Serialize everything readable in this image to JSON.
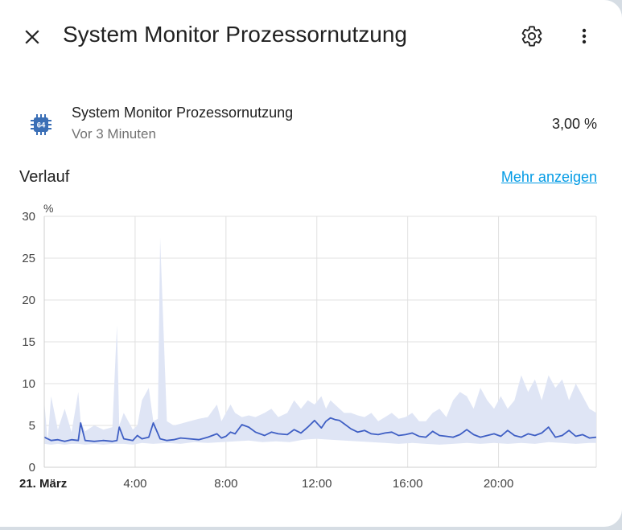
{
  "dialog": {
    "title": "System Monitor Prozessornutzung",
    "icons": {
      "close": "close-icon",
      "settings": "gear-icon",
      "more": "dots-vertical-icon"
    }
  },
  "entity": {
    "icon": "cpu-64-bit-icon",
    "icon_text": "64",
    "name": "System Monitor Prozessornutzung",
    "last_changed": "Vor 3 Minuten",
    "state": "3,00 %"
  },
  "history": {
    "title": "Verlauf",
    "more_link": "Mehr anzeigen"
  },
  "colors": {
    "accent": "#039be5",
    "line": "#3f5fc4",
    "band": "#dfe5f5",
    "icon": "#3b6fb6"
  },
  "chart_data": {
    "type": "line",
    "unit_label": "%",
    "y_ticks": [
      0,
      5,
      10,
      15,
      20,
      25,
      30
    ],
    "ylim": [
      0,
      30
    ],
    "x_ticks": [
      "21. März",
      "4:00",
      "8:00",
      "12:00",
      "16:00",
      "20:00"
    ],
    "x_tick_hours": [
      0,
      4,
      8,
      12,
      16,
      20
    ],
    "xlim_hours": [
      0,
      24.3
    ],
    "grid": true,
    "series": [
      {
        "kind": "mean",
        "x": [
          0.0,
          0.3,
          0.6,
          0.9,
          1.2,
          1.5,
          1.6,
          1.8,
          2.2,
          2.6,
          3.0,
          3.2,
          3.3,
          3.5,
          3.9,
          4.1,
          4.3,
          4.6,
          4.8,
          5.1,
          5.4,
          5.7,
          6.0,
          6.4,
          6.8,
          7.2,
          7.6,
          7.8,
          8.0,
          8.2,
          8.4,
          8.7,
          9.0,
          9.3,
          9.7,
          10.0,
          10.3,
          10.7,
          11.0,
          11.3,
          11.6,
          11.9,
          12.2,
          12.4,
          12.6,
          12.8,
          13.0,
          13.2,
          13.5,
          13.8,
          14.1,
          14.4,
          14.7,
          15.0,
          15.3,
          15.6,
          15.9,
          16.2,
          16.5,
          16.8,
          17.1,
          17.4,
          17.7,
          18.0,
          18.3,
          18.6,
          18.9,
          19.2,
          19.5,
          19.8,
          20.1,
          20.4,
          20.7,
          21.0,
          21.3,
          21.6,
          21.9,
          22.2,
          22.5,
          22.8,
          23.1,
          23.4,
          23.7,
          24.0,
          24.3
        ],
        "values": [
          3.6,
          3.2,
          3.3,
          3.1,
          3.3,
          3.2,
          5.3,
          3.2,
          3.1,
          3.2,
          3.1,
          3.2,
          4.8,
          3.4,
          3.2,
          3.8,
          3.4,
          3.6,
          5.3,
          3.4,
          3.2,
          3.3,
          3.5,
          3.4,
          3.3,
          3.6,
          4.0,
          3.5,
          3.7,
          4.2,
          4.0,
          5.1,
          4.8,
          4.2,
          3.8,
          4.2,
          4.0,
          3.9,
          4.5,
          4.1,
          4.8,
          5.6,
          4.7,
          5.5,
          5.9,
          5.7,
          5.6,
          5.2,
          4.6,
          4.2,
          4.4,
          4.0,
          3.9,
          4.1,
          4.2,
          3.8,
          3.9,
          4.1,
          3.7,
          3.6,
          4.3,
          3.8,
          3.7,
          3.6,
          3.9,
          4.5,
          3.9,
          3.6,
          3.8,
          4.0,
          3.7,
          4.4,
          3.8,
          3.6,
          4.0,
          3.8,
          4.1,
          4.8,
          3.6,
          3.8,
          4.4,
          3.7,
          3.9,
          3.5,
          3.6
        ]
      },
      {
        "kind": "max",
        "x": [
          0.0,
          0.15,
          0.3,
          0.6,
          0.9,
          1.2,
          1.5,
          1.6,
          1.8,
          2.2,
          2.6,
          3.0,
          3.2,
          3.3,
          3.5,
          3.9,
          4.1,
          4.3,
          4.6,
          4.8,
          5.0,
          5.1,
          5.4,
          5.7,
          6.0,
          6.4,
          6.8,
          7.2,
          7.6,
          7.8,
          8.0,
          8.2,
          8.4,
          8.7,
          9.0,
          9.3,
          9.7,
          10.0,
          10.3,
          10.7,
          11.0,
          11.3,
          11.6,
          11.9,
          12.2,
          12.4,
          12.6,
          12.8,
          13.0,
          13.2,
          13.5,
          13.8,
          14.1,
          14.4,
          14.7,
          15.0,
          15.3,
          15.6,
          15.9,
          16.2,
          16.5,
          16.8,
          17.1,
          17.4,
          17.7,
          18.0,
          18.3,
          18.6,
          18.9,
          19.2,
          19.5,
          19.8,
          20.1,
          20.4,
          20.7,
          21.0,
          21.3,
          21.6,
          21.9,
          22.2,
          22.5,
          22.8,
          23.1,
          23.4,
          23.7,
          24.0,
          24.3
        ],
        "values": [
          8.0,
          3.0,
          8.5,
          4.5,
          7.0,
          4.2,
          9.0,
          5.5,
          4.3,
          5.0,
          4.5,
          4.8,
          17.0,
          5.0,
          6.5,
          4.5,
          5.0,
          8.0,
          9.5,
          5.5,
          5.8,
          27.5,
          5.5,
          5.0,
          5.2,
          5.5,
          5.8,
          6.0,
          7.5,
          5.5,
          6.5,
          7.5,
          6.5,
          6.0,
          6.2,
          6.0,
          6.5,
          7.0,
          6.0,
          6.5,
          8.0,
          7.0,
          8.0,
          7.5,
          8.5,
          7.0,
          8.0,
          7.5,
          7.0,
          6.5,
          6.5,
          6.2,
          6.0,
          6.5,
          5.5,
          6.0,
          6.5,
          5.8,
          6.0,
          6.5,
          5.5,
          5.5,
          6.5,
          7.0,
          6.0,
          8.0,
          9.0,
          8.5,
          7.0,
          9.5,
          8.0,
          7.0,
          8.5,
          7.0,
          8.0,
          11.0,
          9.0,
          10.5,
          8.0,
          11.0,
          9.5,
          10.5,
          8.0,
          10.0,
          8.5,
          7.0,
          6.5
        ]
      },
      {
        "kind": "min",
        "x": [
          0.0,
          0.3,
          0.6,
          0.9,
          1.2,
          1.5,
          1.8,
          2.2,
          2.6,
          3.0,
          3.5,
          3.9,
          4.3,
          4.8,
          5.4,
          6.0,
          6.6,
          7.2,
          7.8,
          8.4,
          9.0,
          9.6,
          10.2,
          10.8,
          11.4,
          12.0,
          12.6,
          13.2,
          13.8,
          14.4,
          15.0,
          15.6,
          16.2,
          16.8,
          17.4,
          18.0,
          18.6,
          19.2,
          19.8,
          20.4,
          21.0,
          21.6,
          22.2,
          22.8,
          23.4,
          24.0,
          24.3
        ],
        "values": [
          2.8,
          2.7,
          2.8,
          2.7,
          2.8,
          2.8,
          2.7,
          2.8,
          2.7,
          2.8,
          2.8,
          2.7,
          2.9,
          2.8,
          2.9,
          2.8,
          3.0,
          2.9,
          3.0,
          3.1,
          3.2,
          3.0,
          3.1,
          3.0,
          3.3,
          3.4,
          3.3,
          3.2,
          3.1,
          3.0,
          2.9,
          2.8,
          2.9,
          2.8,
          2.7,
          2.8,
          2.9,
          2.8,
          2.9,
          2.8,
          2.9,
          2.8,
          3.0,
          2.9,
          2.8,
          2.9,
          2.9
        ]
      }
    ]
  }
}
